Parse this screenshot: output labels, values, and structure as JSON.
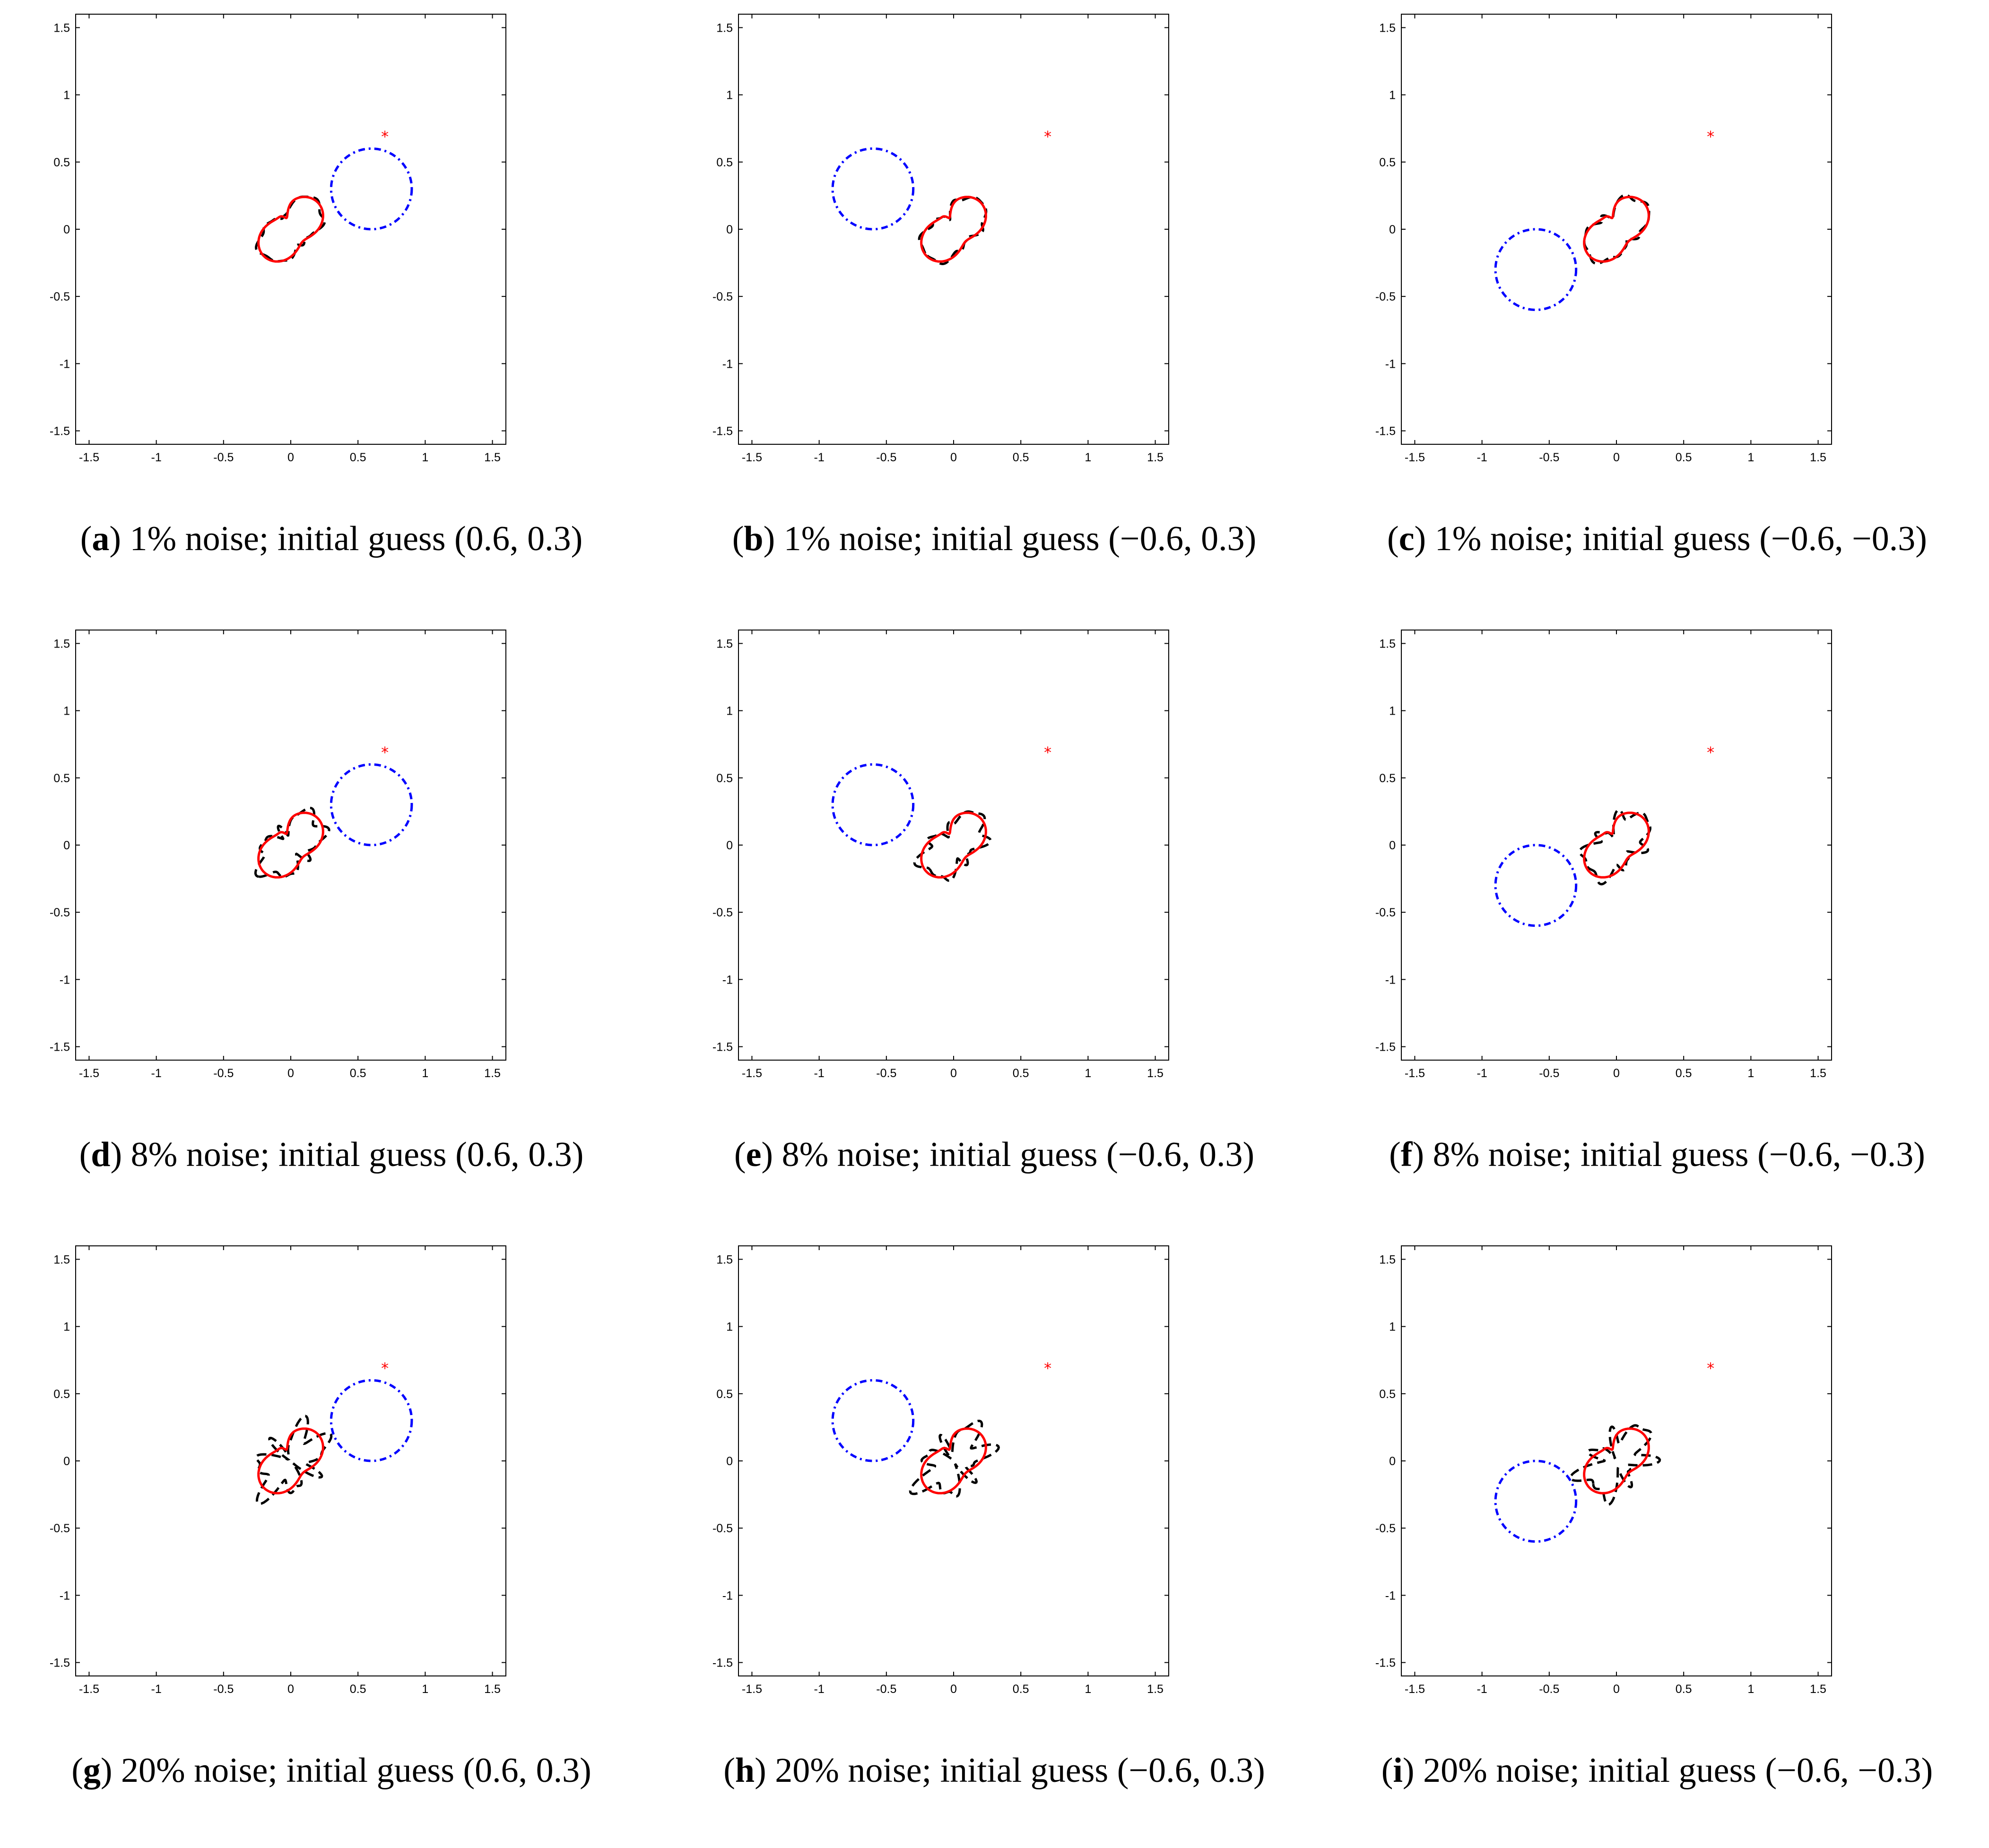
{
  "figure": {
    "colors": {
      "initial_guess": "#0000ff",
      "true_boundary": "#ff0000",
      "reconstruction": "#000000",
      "source_point": "#ff0000",
      "axes": "#000000"
    },
    "panels": [
      {
        "label": "a",
        "caption": "1% noise; initial guess (0.6, 0.3)"
      },
      {
        "label": "b",
        "caption": "1% noise; initial guess (−0.6, 0.3)"
      },
      {
        "label": "c",
        "caption": "1% noise; initial guess (−0.6, −0.3)"
      },
      {
        "label": "d",
        "caption": "8% noise; initial guess (0.6, 0.3)"
      },
      {
        "label": "e",
        "caption": "8% noise; initial guess (−0.6, 0.3)"
      },
      {
        "label": "f",
        "caption": "8% noise; initial guess (−0.6, −0.3)"
      },
      {
        "label": "g",
        "caption": "20% noise; initial guess (0.6, 0.3)"
      },
      {
        "label": "h",
        "caption": "20% noise; initial guess (−0.6, 0.3)"
      },
      {
        "label": "i",
        "caption": "20% noise; initial guess (−0.6, −0.3)"
      }
    ]
  },
  "chart_data": [
    {
      "type": "line",
      "panel": "a",
      "title": "",
      "xlabel": "",
      "ylabel": "",
      "xlim": [
        -1.6,
        1.6
      ],
      "ylim": [
        -1.6,
        1.6
      ],
      "grid": false,
      "ticks": [
        -1.5,
        -1,
        -0.5,
        0,
        0.5,
        1,
        1.5
      ],
      "tick_labels": [
        "-1.5",
        "-1",
        "-0.5",
        "0",
        "0.5",
        "1",
        "1.5"
      ],
      "source_point": {
        "x": 0.7,
        "y": 0.7
      },
      "true_boundary_center": {
        "x": 0.0,
        "y": 0.0
      },
      "initial_guess": {
        "center": {
          "x": 0.6,
          "y": 0.3
        },
        "radius": 0.3
      },
      "noise_percent": 1
    },
    {
      "type": "line",
      "panel": "b",
      "title": "",
      "xlabel": "",
      "ylabel": "",
      "xlim": [
        -1.6,
        1.6
      ],
      "ylim": [
        -1.6,
        1.6
      ],
      "grid": false,
      "ticks": [
        -1.5,
        -1,
        -0.5,
        0,
        0.5,
        1,
        1.5
      ],
      "tick_labels": [
        "-1.5",
        "-1",
        "-0.5",
        "0",
        "0.5",
        "1",
        "1.5"
      ],
      "source_point": {
        "x": 0.7,
        "y": 0.7
      },
      "true_boundary_center": {
        "x": 0.0,
        "y": 0.0
      },
      "initial_guess": {
        "center": {
          "x": -0.6,
          "y": 0.3
        },
        "radius": 0.3
      },
      "noise_percent": 1
    },
    {
      "type": "line",
      "panel": "c",
      "title": "",
      "xlabel": "",
      "ylabel": "",
      "xlim": [
        -1.6,
        1.6
      ],
      "ylim": [
        -1.6,
        1.6
      ],
      "grid": false,
      "ticks": [
        -1.5,
        -1,
        -0.5,
        0,
        0.5,
        1,
        1.5
      ],
      "tick_labels": [
        "-1.5",
        "-1",
        "-0.5",
        "0",
        "0.5",
        "1",
        "1.5"
      ],
      "source_point": {
        "x": 0.7,
        "y": 0.7
      },
      "true_boundary_center": {
        "x": 0.0,
        "y": 0.0
      },
      "initial_guess": {
        "center": {
          "x": -0.6,
          "y": -0.3
        },
        "radius": 0.3
      },
      "noise_percent": 1
    },
    {
      "type": "line",
      "panel": "d",
      "title": "",
      "xlabel": "",
      "ylabel": "",
      "xlim": [
        -1.6,
        1.6
      ],
      "ylim": [
        -1.6,
        1.6
      ],
      "grid": false,
      "ticks": [
        -1.5,
        -1,
        -0.5,
        0,
        0.5,
        1,
        1.5
      ],
      "tick_labels": [
        "-1.5",
        "-1",
        "-0.5",
        "0",
        "0.5",
        "1",
        "1.5"
      ],
      "source_point": {
        "x": 0.7,
        "y": 0.7
      },
      "true_boundary_center": {
        "x": 0.0,
        "y": 0.0
      },
      "initial_guess": {
        "center": {
          "x": 0.6,
          "y": 0.3
        },
        "radius": 0.3
      },
      "noise_percent": 8
    },
    {
      "type": "line",
      "panel": "e",
      "title": "",
      "xlabel": "",
      "ylabel": "",
      "xlim": [
        -1.6,
        1.6
      ],
      "ylim": [
        -1.6,
        1.6
      ],
      "grid": false,
      "ticks": [
        -1.5,
        -1,
        -0.5,
        0,
        0.5,
        1,
        1.5
      ],
      "tick_labels": [
        "-1.5",
        "-1",
        "-0.5",
        "0",
        "0.5",
        "1",
        "1.5"
      ],
      "source_point": {
        "x": 0.7,
        "y": 0.7
      },
      "true_boundary_center": {
        "x": 0.0,
        "y": 0.0
      },
      "initial_guess": {
        "center": {
          "x": -0.6,
          "y": 0.3
        },
        "radius": 0.3
      },
      "noise_percent": 8
    },
    {
      "type": "line",
      "panel": "f",
      "title": "",
      "xlabel": "",
      "ylabel": "",
      "xlim": [
        -1.6,
        1.6
      ],
      "ylim": [
        -1.6,
        1.6
      ],
      "grid": false,
      "ticks": [
        -1.5,
        -1,
        -0.5,
        0,
        0.5,
        1,
        1.5
      ],
      "tick_labels": [
        "-1.5",
        "-1",
        "-0.5",
        "0",
        "0.5",
        "1",
        "1.5"
      ],
      "source_point": {
        "x": 0.7,
        "y": 0.7
      },
      "true_boundary_center": {
        "x": 0.0,
        "y": 0.0
      },
      "initial_guess": {
        "center": {
          "x": -0.6,
          "y": -0.3
        },
        "radius": 0.3
      },
      "noise_percent": 8
    },
    {
      "type": "line",
      "panel": "g",
      "title": "",
      "xlabel": "",
      "ylabel": "",
      "xlim": [
        -1.6,
        1.6
      ],
      "ylim": [
        -1.6,
        1.6
      ],
      "grid": false,
      "ticks": [
        -1.5,
        -1,
        -0.5,
        0,
        0.5,
        1,
        1.5
      ],
      "tick_labels": [
        "-1.5",
        "-1",
        "-0.5",
        "0",
        "0.5",
        "1",
        "1.5"
      ],
      "source_point": {
        "x": 0.7,
        "y": 0.7
      },
      "true_boundary_center": {
        "x": 0.0,
        "y": 0.0
      },
      "initial_guess": {
        "center": {
          "x": 0.6,
          "y": 0.3
        },
        "radius": 0.3
      },
      "noise_percent": 20
    },
    {
      "type": "line",
      "panel": "h",
      "title": "",
      "xlabel": "",
      "ylabel": "",
      "xlim": [
        -1.6,
        1.6
      ],
      "ylim": [
        -1.6,
        1.6
      ],
      "grid": false,
      "ticks": [
        -1.5,
        -1,
        -0.5,
        0,
        0.5,
        1,
        1.5
      ],
      "tick_labels": [
        "-1.5",
        "-1",
        "-0.5",
        "0",
        "0.5",
        "1",
        "1.5"
      ],
      "source_point": {
        "x": 0.7,
        "y": 0.7
      },
      "true_boundary_center": {
        "x": 0.0,
        "y": 0.0
      },
      "initial_guess": {
        "center": {
          "x": -0.6,
          "y": 0.3
        },
        "radius": 0.3
      },
      "noise_percent": 20
    },
    {
      "type": "line",
      "panel": "i",
      "title": "",
      "xlabel": "",
      "ylabel": "",
      "xlim": [
        -1.6,
        1.6
      ],
      "ylim": [
        -1.6,
        1.6
      ],
      "grid": false,
      "ticks": [
        -1.5,
        -1,
        -0.5,
        0,
        0.5,
        1,
        1.5
      ],
      "tick_labels": [
        "-1.5",
        "-1",
        "-0.5",
        "0",
        "0.5",
        "1",
        "1.5"
      ],
      "source_point": {
        "x": 0.7,
        "y": 0.7
      },
      "true_boundary_center": {
        "x": 0.0,
        "y": 0.0
      },
      "initial_guess": {
        "center": {
          "x": -0.6,
          "y": -0.3
        },
        "radius": 0.3
      },
      "noise_percent": 20
    }
  ]
}
